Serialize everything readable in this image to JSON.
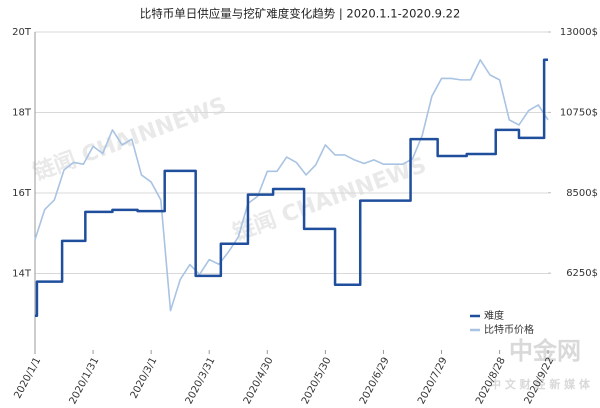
{
  "chart_data": {
    "type": "line",
    "title": "比特币单日供应量与挖矿难度变化趋势 | 2020.1.1-2020.9.22",
    "xlim": [
      "2020/1/1",
      "2020/9/22"
    ],
    "xticks": [
      "2020/1/1",
      "2020/1/31",
      "2020/3/1",
      "2020/3/31",
      "2020/4/30",
      "2020/5/30",
      "2020/6/29",
      "2020/7/29",
      "2020/8/28",
      "2020/9/22"
    ],
    "ylim": [
      12.1,
      20
    ],
    "yticks": [
      {
        "value": 14,
        "label": "14T"
      },
      {
        "value": 16,
        "label": "16T"
      },
      {
        "value": 18,
        "label": "18T"
      },
      {
        "value": 20,
        "label": "20T"
      }
    ],
    "y2lim": [
      4100,
      13000
    ],
    "y2ticks": [
      {
        "value": 6250,
        "label": "6250$"
      },
      {
        "value": 8500,
        "label": "8500$"
      },
      {
        "value": 10750,
        "label": "10750$"
      },
      {
        "value": 13000,
        "label": "13000$"
      }
    ],
    "grid": true,
    "legend": "lower right",
    "series": [
      {
        "name": "难度",
        "color": "#1f4e9c",
        "step": true,
        "x": [
          "2020/1/1",
          "2020/1/2",
          "2020/1/15",
          "2020/1/27",
          "2020/2/10",
          "2020/2/23",
          "2020/3/8",
          "2020/3/24",
          "2020/4/6",
          "2020/4/20",
          "2020/5/3",
          "2020/5/19",
          "2020/6/4",
          "2020/6/17",
          "2020/7/13",
          "2020/7/27",
          "2020/8/11",
          "2020/8/26",
          "2020/9/7",
          "2020/9/20"
        ],
        "values": [
          12.95,
          13.8,
          14.81,
          15.53,
          15.58,
          15.55,
          16.55,
          13.94,
          14.74,
          15.96,
          16.1,
          15.11,
          13.72,
          15.81,
          17.34,
          16.92,
          16.97,
          17.57,
          17.37,
          19.31
        ]
      },
      {
        "name": "比特币价格",
        "color": "#a9c3e3",
        "axis": "y2",
        "x": [
          "2020/1/1",
          "2020/1/6",
          "2020/1/11",
          "2020/1/16",
          "2020/1/21",
          "2020/1/26",
          "2020/1/31",
          "2020/2/5",
          "2020/2/10",
          "2020/2/15",
          "2020/2/20",
          "2020/2/25",
          "2020/3/1",
          "2020/3/6",
          "2020/3/11",
          "2020/3/16",
          "2020/3/21",
          "2020/3/26",
          "2020/3/31",
          "2020/4/5",
          "2020/4/10",
          "2020/4/15",
          "2020/4/20",
          "2020/4/25",
          "2020/4/30",
          "2020/5/5",
          "2020/5/10",
          "2020/5/15",
          "2020/5/20",
          "2020/5/25",
          "2020/5/30",
          "2020/6/4",
          "2020/6/9",
          "2020/6/14",
          "2020/6/19",
          "2020/6/24",
          "2020/6/29",
          "2020/7/4",
          "2020/7/9",
          "2020/7/14",
          "2020/7/19",
          "2020/7/24",
          "2020/7/29",
          "2020/8/3",
          "2020/8/8",
          "2020/8/13",
          "2020/8/18",
          "2020/8/23",
          "2020/8/28",
          "2020/9/2",
          "2020/9/7",
          "2020/9/12",
          "2020/9/17",
          "2020/9/22"
        ],
        "values": [
          7190,
          8030,
          8300,
          9140,
          9350,
          9300,
          9800,
          9600,
          10260,
          9840,
          10000,
          9000,
          8800,
          8300,
          5200,
          6070,
          6490,
          6210,
          6630,
          6500,
          6850,
          7260,
          8200,
          8400,
          9100,
          9100,
          9500,
          9350,
          9000,
          9280,
          9840,
          9560,
          9560,
          9420,
          9320,
          9420,
          9300,
          9300,
          9300,
          9450,
          10100,
          11200,
          11700,
          11700,
          11660,
          11660,
          12220,
          11800,
          11660,
          10540,
          10400,
          10800,
          10960,
          10540
        ]
      }
    ],
    "watermarks": [
      "链闻 CHAINNEWS",
      "链闻 CHAINNEWS",
      "中金网",
      "中 文 财 经 新 媒 体"
    ]
  }
}
